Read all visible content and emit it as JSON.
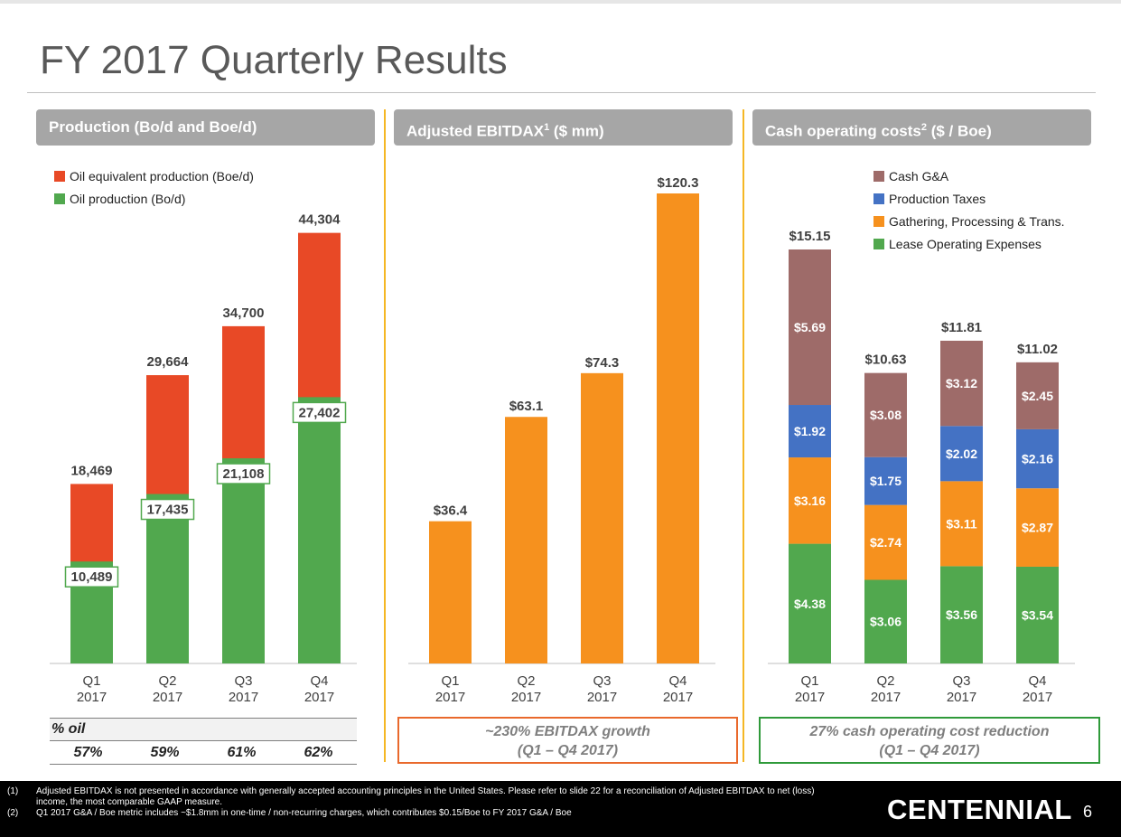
{
  "page": {
    "title": "FY 2017 Quarterly Results",
    "page_number": "6",
    "logo_text": "CENTENNIAL"
  },
  "colors": {
    "oil_equivalent": "#e84926",
    "oil": "#51a84e",
    "ebitdax": "#f6911e",
    "cash_ga": "#9e6b69",
    "production_taxes": "#4472c4",
    "gathering": "#f6911e",
    "lease_operating": "#51a84e",
    "header_gray": "#a6a6a6",
    "separator": "#f5b724"
  },
  "panels": {
    "production": {
      "header": "Production (Bo/d and Boe/d)"
    },
    "ebitdax": {
      "header_main": "Adjusted EBITDAX",
      "header_sup": "1",
      "header_rest": " ($ mm)"
    },
    "costs": {
      "header_main": "Cash operating costs",
      "header_sup": "2",
      "header_rest": " ($ / Boe)"
    }
  },
  "chart_data": [
    {
      "type": "bar",
      "stacked": "overlay",
      "categories": [
        "Q1\n2017",
        "Q2\n2017",
        "Q3\n2017",
        "Q4\n2017"
      ],
      "series": [
        {
          "name": "Oil equivalent production (Boe/d)",
          "values": [
            18469,
            29664,
            34700,
            44304
          ],
          "labels": [
            "18,469",
            "29,664",
            "34,700",
            "44,304"
          ]
        },
        {
          "name": "Oil production (Bo/d)",
          "values": [
            10489,
            17435,
            21108,
            27402
          ],
          "labels": [
            "10,489",
            "17,435",
            "21,108",
            "27,402"
          ]
        }
      ],
      "ylim": [
        0,
        50000
      ],
      "legend": "top-left",
      "grid": false
    },
    {
      "type": "bar",
      "categories": [
        "Q1\n2017",
        "Q2\n2017",
        "Q3\n2017",
        "Q4\n2017"
      ],
      "values": [
        36.4,
        63.1,
        74.3,
        120.3
      ],
      "labels": [
        "$36.4",
        "$63.1",
        "$74.3",
        "$120.3"
      ],
      "ylim": [
        0,
        130
      ],
      "grid": false
    },
    {
      "type": "bar",
      "stacked": true,
      "categories": [
        "Q1\n2017",
        "Q2\n2017",
        "Q3\n2017",
        "Q4\n2017"
      ],
      "series": [
        {
          "name": "Lease Operating Expenses",
          "values": [
            4.38,
            3.06,
            3.56,
            3.54
          ],
          "labels": [
            "$4.38",
            "$3.06",
            "$3.56",
            "$3.54"
          ]
        },
        {
          "name": "Gathering, Processing & Trans.",
          "values": [
            3.16,
            2.74,
            3.11,
            2.87
          ],
          "labels": [
            "$3.16",
            "$2.74",
            "$3.11",
            "$2.87"
          ]
        },
        {
          "name": "Production Taxes",
          "values": [
            1.92,
            1.75,
            2.02,
            2.16
          ],
          "labels": [
            "$1.92",
            "$1.75",
            "$2.02",
            "$2.16"
          ]
        },
        {
          "name": "Cash G&A",
          "values": [
            5.69,
            3.08,
            3.12,
            2.45
          ],
          "labels": [
            "$5.69",
            "$3.08",
            "$3.12",
            "$2.45"
          ]
        }
      ],
      "totals": [
        15.15,
        10.63,
        11.81,
        11.02
      ],
      "total_labels": [
        "$15.15",
        "$10.63",
        "$11.81",
        "$11.02"
      ],
      "ylim": [
        0,
        17
      ],
      "legend": "top-right",
      "grid": false
    }
  ],
  "pct_oil": {
    "label": "% oil",
    "values": [
      "57%",
      "59%",
      "61%",
      "62%"
    ]
  },
  "callouts": {
    "ebitdax_line1": "~230% EBITDAX growth",
    "ebitdax_line2": "(Q1 – Q4 2017)",
    "cost_line1": "27% cash operating cost reduction",
    "cost_line2": "(Q1 – Q4 2017)"
  },
  "footnotes": {
    "n1": "(1)",
    "t1a": "Adjusted EBITDAX is not presented in accordance with generally accepted accounting principles in the United States. Please refer to slide 22 for a reconciliation of Adjusted EBITDAX to net (loss)",
    "t1b": "income, the most comparable GAAP measure.",
    "n2": "(2)",
    "t2": "Q1 2017 G&A / Boe metric includes ~$1.8mm in one-time / non-recurring charges, which contributes $0.15/Boe to FY 2017 G&A / Boe"
  }
}
